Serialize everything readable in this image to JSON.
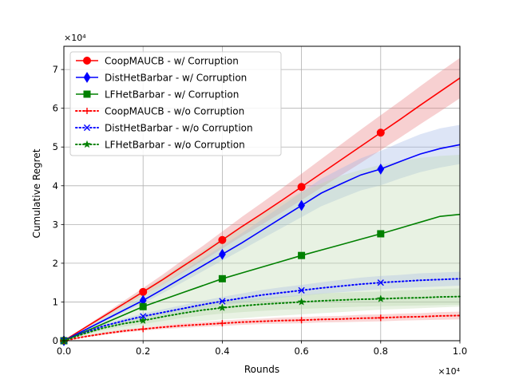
{
  "chart_data": {
    "type": "line",
    "xlabel": "Rounds",
    "ylabel": "Cumulative Regret",
    "x_multiplier_label": "×10⁴",
    "y_multiplier_label": "×10⁴",
    "xlim": [
      0,
      1.0
    ],
    "ylim": [
      0,
      7.6
    ],
    "x_ticks": [
      0.0,
      0.2,
      0.4,
      0.6,
      0.8,
      1.0
    ],
    "x_tick_labels": [
      "0.0",
      "0.2",
      "0.4",
      "0.6",
      "0.8",
      "1.0"
    ],
    "y_ticks": [
      0,
      1,
      2,
      3,
      4,
      5,
      6,
      7
    ],
    "y_tick_labels": [
      "0",
      "1",
      "2",
      "3",
      "4",
      "5",
      "6",
      "7"
    ],
    "grid": true,
    "legend_position": "top-left",
    "x": [
      0,
      0.05,
      0.1,
      0.15,
      0.2,
      0.25,
      0.3,
      0.35,
      0.4,
      0.45,
      0.5,
      0.55,
      0.6,
      0.65,
      0.7,
      0.75,
      0.8,
      0.85,
      0.9,
      0.95,
      1.0
    ],
    "marker_x": [
      0,
      0.2,
      0.4,
      0.6,
      0.8
    ],
    "series": [
      {
        "name": "CoopMAUCB - w/ Corruption",
        "color": "#ff0000",
        "dash": "solid",
        "marker": "circle",
        "values": [
          0,
          0.315,
          0.63,
          0.945,
          1.26,
          1.58,
          1.92,
          2.25,
          2.6,
          2.95,
          3.28,
          3.62,
          3.97,
          4.32,
          4.67,
          5.02,
          5.37,
          5.72,
          6.08,
          6.43,
          6.78
        ],
        "band_lower": [
          0,
          0.29,
          0.58,
          0.87,
          1.16,
          1.45,
          1.76,
          2.06,
          2.38,
          2.7,
          3.0,
          3.31,
          3.63,
          3.95,
          4.27,
          4.59,
          4.92,
          5.25,
          5.59,
          5.92,
          6.26
        ],
        "band_upper": [
          0,
          0.34,
          0.68,
          1.02,
          1.36,
          1.71,
          2.08,
          2.44,
          2.82,
          3.2,
          3.56,
          3.93,
          4.31,
          4.69,
          5.07,
          5.45,
          5.82,
          6.19,
          6.57,
          6.94,
          7.3
        ],
        "band_color": "#e8787a"
      },
      {
        "name": "DistHetBarbar - w/ Corruption",
        "color": "#0000ff",
        "dash": "solid",
        "marker": "diamond",
        "values": [
          0,
          0.26,
          0.52,
          0.78,
          1.04,
          1.33,
          1.63,
          1.93,
          2.23,
          2.53,
          2.85,
          3.17,
          3.49,
          3.81,
          4.05,
          4.28,
          4.43,
          4.63,
          4.82,
          4.96,
          5.06
        ],
        "band_lower": [
          0,
          0.24,
          0.48,
          0.72,
          0.96,
          1.23,
          1.51,
          1.79,
          2.07,
          2.35,
          2.63,
          2.91,
          3.19,
          3.47,
          3.68,
          3.88,
          4.01,
          4.19,
          4.35,
          4.47,
          4.56
        ],
        "band_upper": [
          0,
          0.28,
          0.57,
          0.86,
          1.14,
          1.46,
          1.79,
          2.12,
          2.45,
          2.78,
          3.13,
          3.48,
          3.83,
          4.18,
          4.45,
          4.71,
          4.9,
          5.12,
          5.33,
          5.48,
          5.57
        ],
        "band_color": "#9fb5e6"
      },
      {
        "name": "LFHetBarbar - w/ Corruption",
        "color": "#008000",
        "dash": "solid",
        "marker": "square",
        "values": [
          0,
          0.22,
          0.44,
          0.66,
          0.88,
          1.06,
          1.24,
          1.42,
          1.6,
          1.75,
          1.9,
          2.05,
          2.2,
          2.34,
          2.48,
          2.62,
          2.76,
          2.91,
          3.06,
          3.21,
          3.26
        ],
        "band_lower": [
          0,
          0.1,
          0.2,
          0.28,
          0.35,
          0.4,
          0.45,
          0.5,
          0.55,
          0.58,
          0.62,
          0.65,
          0.68,
          0.71,
          0.74,
          0.77,
          0.8,
          0.82,
          0.84,
          0.86,
          0.88
        ],
        "band_upper": [
          0,
          0.32,
          0.64,
          0.98,
          1.3,
          1.64,
          1.99,
          2.33,
          2.66,
          2.97,
          3.28,
          3.57,
          3.84,
          4.06,
          4.26,
          4.41,
          4.54,
          4.64,
          4.72,
          4.77,
          4.8
        ],
        "band_color": "#bcd9b0"
      },
      {
        "name": "CoopMAUCB - w/o Corruption",
        "color": "#ff0000",
        "dash": "dotted",
        "marker": "plus",
        "values": [
          0,
          0.1,
          0.18,
          0.25,
          0.3,
          0.35,
          0.39,
          0.42,
          0.45,
          0.48,
          0.5,
          0.52,
          0.53,
          0.55,
          0.56,
          0.58,
          0.59,
          0.61,
          0.62,
          0.64,
          0.65
        ],
        "band_lower": [
          0,
          0.08,
          0.15,
          0.21,
          0.26,
          0.3,
          0.33,
          0.36,
          0.38,
          0.41,
          0.43,
          0.44,
          0.45,
          0.47,
          0.48,
          0.49,
          0.5,
          0.52,
          0.53,
          0.54,
          0.55
        ],
        "band_upper": [
          0,
          0.12,
          0.21,
          0.29,
          0.34,
          0.4,
          0.45,
          0.48,
          0.52,
          0.55,
          0.57,
          0.6,
          0.61,
          0.63,
          0.64,
          0.67,
          0.68,
          0.7,
          0.71,
          0.74,
          0.75
        ],
        "band_color": "#f28b8b"
      },
      {
        "name": "DistHetBarbar - w/o Corruption",
        "color": "#0000ff",
        "dash": "dotted",
        "marker": "x",
        "values": [
          0,
          0.2,
          0.38,
          0.51,
          0.63,
          0.73,
          0.83,
          0.93,
          1.02,
          1.1,
          1.18,
          1.24,
          1.3,
          1.36,
          1.41,
          1.46,
          1.5,
          1.53,
          1.56,
          1.58,
          1.6
        ],
        "band_lower": [
          0,
          0.17,
          0.33,
          0.45,
          0.56,
          0.65,
          0.74,
          0.83,
          0.91,
          0.98,
          1.05,
          1.11,
          1.16,
          1.21,
          1.25,
          1.29,
          1.33,
          1.36,
          1.38,
          1.4,
          1.42
        ],
        "band_upper": [
          0,
          0.23,
          0.43,
          0.57,
          0.7,
          0.81,
          0.92,
          1.03,
          1.13,
          1.22,
          1.31,
          1.38,
          1.44,
          1.51,
          1.57,
          1.63,
          1.67,
          1.7,
          1.74,
          1.76,
          1.78
        ],
        "band_color": "#a9bde3"
      },
      {
        "name": "LFHetBarbar - w/o Corruption",
        "color": "#008000",
        "dash": "dotted",
        "marker": "star",
        "values": [
          0,
          0.18,
          0.33,
          0.44,
          0.52,
          0.62,
          0.71,
          0.79,
          0.85,
          0.9,
          0.94,
          0.97,
          1.0,
          1.03,
          1.05,
          1.07,
          1.08,
          1.1,
          1.11,
          1.13,
          1.14
        ],
        "band_lower": [
          0,
          0.15,
          0.27,
          0.36,
          0.43,
          0.51,
          0.59,
          0.65,
          0.7,
          0.74,
          0.77,
          0.8,
          0.82,
          0.84,
          0.86,
          0.88,
          0.89,
          0.9,
          0.91,
          0.92,
          0.93
        ],
        "band_upper": [
          0,
          0.21,
          0.39,
          0.52,
          0.61,
          0.73,
          0.83,
          0.93,
          1.0,
          1.06,
          1.11,
          1.14,
          1.18,
          1.22,
          1.24,
          1.26,
          1.27,
          1.3,
          1.31,
          1.34,
          1.35
        ],
        "band_color": "#b6d7a8"
      }
    ]
  }
}
